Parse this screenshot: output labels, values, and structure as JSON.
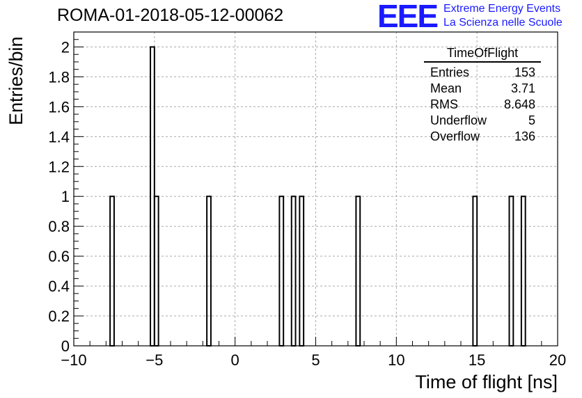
{
  "title": "ROMA-01-2018-05-12-00062",
  "logo": {
    "mark": "EEE",
    "line1": "Extreme Energy Events",
    "line2": "La Scienza nelle Scuole",
    "color": "#1a1aff"
  },
  "stats": {
    "name": "TimeOfFlight",
    "rows": [
      {
        "label": "Entries",
        "value": "153"
      },
      {
        "label": "Mean",
        "value": "3.71"
      },
      {
        "label": "RMS",
        "value": "8.648"
      },
      {
        "label": "Underflow",
        "value": "5"
      },
      {
        "label": "Overflow",
        "value": "136"
      }
    ]
  },
  "chart_data": {
    "type": "bar",
    "histogram": true,
    "xlabel": "Time of flight [ns]",
    "ylabel": "Entries/bin",
    "xlim": [
      -10,
      20
    ],
    "ylim": [
      0,
      2.1
    ],
    "bin_width": 0.25,
    "xticks": [
      "−10",
      "−5",
      "0",
      "5",
      "10",
      "15",
      "20"
    ],
    "xtick_values": [
      -10,
      -5,
      0,
      5,
      10,
      15,
      20
    ],
    "yticks": [
      "0",
      "0.2",
      "0.4",
      "0.6",
      "0.8",
      "1",
      "1.2",
      "1.4",
      "1.6",
      "1.8",
      "2"
    ],
    "ytick_values": [
      0,
      0.2,
      0.4,
      0.6,
      0.8,
      1,
      1.2,
      1.4,
      1.6,
      1.8,
      2
    ],
    "grid": true,
    "bins": [
      {
        "x": -7.75,
        "y": 1
      },
      {
        "x": -5.25,
        "y": 2
      },
      {
        "x": -5.0,
        "y": 1
      },
      {
        "x": -1.75,
        "y": 1
      },
      {
        "x": 2.75,
        "y": 1
      },
      {
        "x": 3.5,
        "y": 1
      },
      {
        "x": 4.0,
        "y": 1
      },
      {
        "x": 7.5,
        "y": 1
      },
      {
        "x": 14.75,
        "y": 1
      },
      {
        "x": 17.0,
        "y": 1
      },
      {
        "x": 17.75,
        "y": 1
      }
    ]
  }
}
